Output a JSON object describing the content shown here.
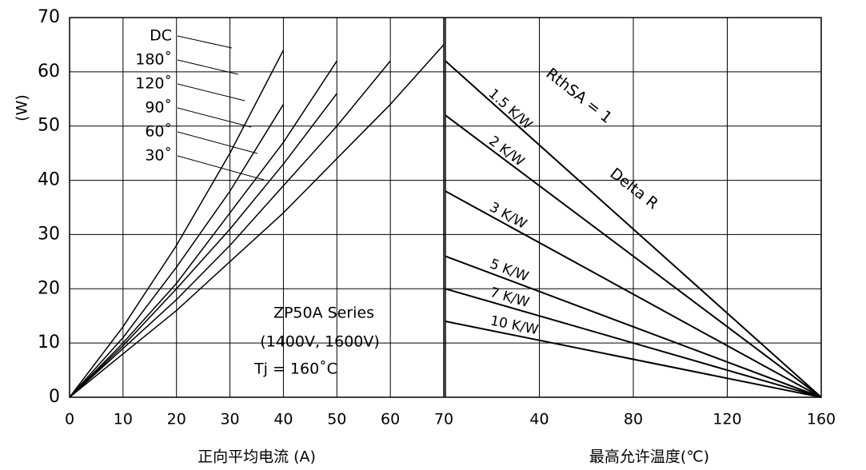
{
  "chart_data": [
    {
      "type": "line",
      "x": [
        0,
        10,
        20,
        30,
        40,
        50,
        60,
        70
      ],
      "series": [
        {
          "name": "DC",
          "color": "#000000",
          "values": [
            0,
            8,
            16,
            25,
            34,
            44,
            54,
            65
          ]
        },
        {
          "name": "180˚",
          "color": "#000000",
          "values": [
            0,
            9,
            18,
            28,
            39,
            50,
            62,
            null
          ]
        },
        {
          "name": "120˚",
          "color": "#000000",
          "values": [
            0,
            9.5,
            20,
            31,
            43,
            56,
            null,
            null
          ]
        },
        {
          "name": "90˚",
          "color": "#000000",
          "values": [
            0,
            10,
            21,
            34,
            47,
            62,
            null,
            null
          ]
        },
        {
          "name": "60˚",
          "color": "#000000",
          "values": [
            0,
            11,
            24,
            38,
            54,
            null,
            null,
            null
          ]
        },
        {
          "name": "30˚",
          "color": "#000000",
          "values": [
            0,
            13,
            28,
            45,
            64,
            null,
            null,
            null
          ]
        }
      ],
      "xlim": [
        0,
        70
      ],
      "xticks": [
        0,
        10,
        20,
        30,
        40,
        50,
        60,
        70
      ],
      "ylim": [
        0,
        70
      ],
      "yticks": [
        0,
        10,
        20,
        30,
        40,
        50,
        60,
        70
      ],
      "grid": true,
      "y_label": "(W)",
      "x_label": "正向平均电流 (A)",
      "annotations": [
        "ZP50A Series",
        "(1400V, 1600V)",
        "Tj = 160˚C"
      ]
    },
    {
      "type": "line",
      "x": [
        0,
        160
      ],
      "series": [
        {
          "name": "1.5 K/W",
          "color": "#000000",
          "values": [
            62,
            0
          ]
        },
        {
          "name": "2 K/W",
          "color": "#000000",
          "values": [
            52,
            0
          ]
        },
        {
          "name": "3 K/W",
          "color": "#000000",
          "values": [
            38,
            0
          ]
        },
        {
          "name": "5 K/W",
          "color": "#000000",
          "values": [
            26,
            0
          ]
        },
        {
          "name": "7 K/W",
          "color": "#000000",
          "values": [
            20,
            0
          ]
        },
        {
          "name": "10 K/W",
          "color": "#000000",
          "values": [
            14,
            0
          ]
        }
      ],
      "xlim": [
        0,
        160
      ],
      "xticks": [
        40,
        80,
        120,
        160
      ],
      "ylim": [
        0,
        70
      ],
      "grid": true,
      "x_label": "最高允许温度(℃)",
      "annotations": [
        "RthSA = 1",
        "Delta R"
      ]
    }
  ]
}
